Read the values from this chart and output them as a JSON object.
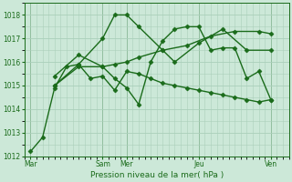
{
  "bg_color": "#cce8d8",
  "grid_color": "#aacfba",
  "line_color": "#1a6b1a",
  "xlabel": "Pression niveau de la mer( hPa )",
  "ylim": [
    1012,
    1018.5
  ],
  "yticks": [
    1012,
    1013,
    1014,
    1015,
    1016,
    1017,
    1018
  ],
  "xlim": [
    0,
    44
  ],
  "day_tick_positions": [
    1,
    13,
    17,
    29,
    41
  ],
  "day_tick_labels": [
    "Mar",
    "Sam",
    "Mer",
    "Jeu",
    "Ven"
  ],
  "vline_positions": [
    1,
    13,
    17,
    29,
    41
  ],
  "series": [
    {
      "x": [
        1,
        3,
        5,
        7,
        9,
        11,
        13,
        15,
        17,
        19,
        21,
        23,
        25,
        27,
        29,
        31,
        33,
        35,
        37,
        39,
        41
      ],
      "y": [
        1012.2,
        1012.8,
        1014.9,
        1015.8,
        1015.9,
        1015.3,
        1015.4,
        1014.8,
        1015.6,
        1015.5,
        1015.3,
        1015.1,
        1015.0,
        1014.9,
        1014.8,
        1014.7,
        1014.6,
        1014.5,
        1014.4,
        1014.3,
        1014.4
      ],
      "marker": "D",
      "markersize": 2.5,
      "linewidth": 1.0
    },
    {
      "x": [
        5,
        9,
        13,
        15,
        17,
        19,
        23,
        25,
        29,
        33,
        37,
        41
      ],
      "y": [
        1015.0,
        1015.9,
        1017.0,
        1018.0,
        1018.0,
        1017.5,
        1016.5,
        1016.0,
        1016.8,
        1017.4,
        1016.5,
        1016.5
      ],
      "marker": "D",
      "markersize": 2.5,
      "linewidth": 1.0
    },
    {
      "x": [
        5,
        9,
        13,
        15,
        17,
        19,
        23,
        27,
        31,
        35,
        39,
        41
      ],
      "y": [
        1015.0,
        1015.8,
        1015.8,
        1015.9,
        1016.0,
        1016.2,
        1016.5,
        1016.7,
        1017.1,
        1017.3,
        1017.3,
        1017.2
      ],
      "marker": "D",
      "markersize": 2.5,
      "linewidth": 1.0
    },
    {
      "x": [
        5,
        9,
        13,
        15,
        17,
        19,
        21,
        23,
        25,
        27,
        29,
        31,
        33,
        35,
        37,
        39,
        41
      ],
      "y": [
        1015.4,
        1016.3,
        1015.8,
        1015.3,
        1014.9,
        1014.2,
        1016.0,
        1016.9,
        1017.4,
        1017.5,
        1017.5,
        1016.5,
        1016.6,
        1016.6,
        1015.3,
        1015.6,
        1014.4
      ],
      "marker": "D",
      "markersize": 2.5,
      "linewidth": 1.0
    }
  ]
}
